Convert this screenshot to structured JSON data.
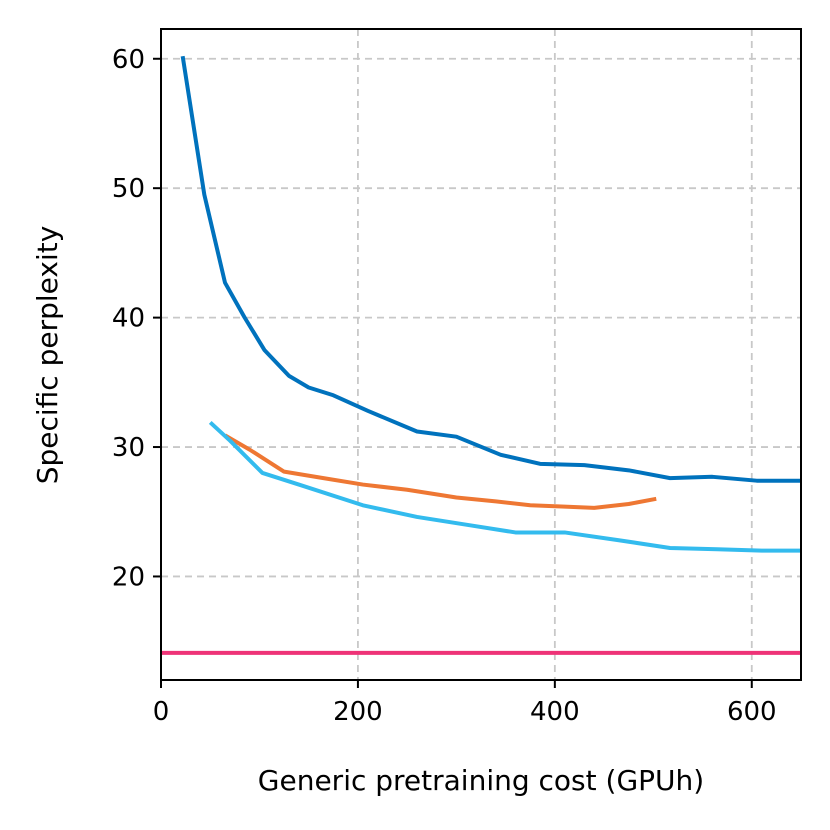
{
  "chart_data": {
    "type": "line",
    "title": "",
    "xlabel": "Generic pretraining cost (GPUh)",
    "ylabel": "Specific perplexity",
    "xlim": [
      0,
      650
    ],
    "ylim": [
      12,
      62.3
    ],
    "xticks": [
      0,
      200,
      400,
      600
    ],
    "yticks": [
      20,
      30,
      40,
      50,
      60
    ],
    "grid": true,
    "legend": "none",
    "series": [
      {
        "name": "series-dark-blue",
        "color": "#0072BD",
        "x": [
          22,
          44,
          65,
          85,
          105,
          130,
          150,
          175,
          210,
          260,
          300,
          345,
          385,
          430,
          475,
          517,
          560,
          605,
          650
        ],
        "y": [
          60.2,
          49.5,
          42.7,
          40.0,
          37.5,
          35.5,
          34.6,
          34.0,
          32.8,
          31.2,
          30.8,
          29.4,
          28.7,
          28.6,
          28.2,
          27.6,
          27.7,
          27.4,
          27.4
        ]
      },
      {
        "name": "series-orange",
        "color": "#EE7733",
        "x": [
          65,
          90,
          125,
          165,
          205,
          250,
          300,
          340,
          375,
          410,
          440,
          475,
          503
        ],
        "y": [
          30.9,
          29.8,
          28.1,
          27.6,
          27.1,
          26.7,
          26.1,
          25.8,
          25.5,
          25.4,
          25.3,
          25.6,
          26.0
        ]
      },
      {
        "name": "series-light-blue",
        "color": "#33BBEE",
        "x": [
          50,
          70,
          103,
          140,
          205,
          260,
          310,
          360,
          410,
          465,
          517,
          565,
          610,
          650
        ],
        "y": [
          31.9,
          30.5,
          28.0,
          27.1,
          25.5,
          24.6,
          24.0,
          23.4,
          23.4,
          22.8,
          22.2,
          22.1,
          22.0,
          22.0
        ]
      },
      {
        "name": "series-baseline",
        "color": "#EE3377",
        "x": [
          0,
          650
        ],
        "y": [
          14.1,
          14.1
        ]
      }
    ]
  }
}
